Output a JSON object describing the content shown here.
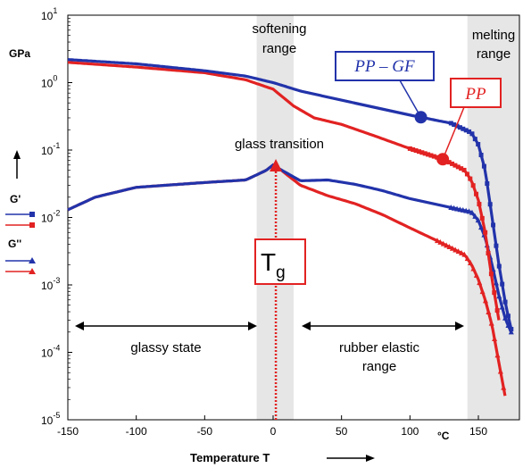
{
  "chart_data": {
    "type": "line",
    "xlabel": "Temperature   T",
    "x_unit": "°C",
    "y_unit": "GPa",
    "xlim": [
      -150,
      180
    ],
    "ylim_log10": [
      -5,
      1
    ],
    "yscale": "log",
    "x_ticks": [
      "-150",
      "-100",
      "-50",
      "0",
      "50",
      "100",
      "150"
    ],
    "y_ticks": [
      {
        "base": "10",
        "exp": "1"
      },
      {
        "base": "10",
        "exp": "0"
      },
      {
        "base": "10",
        "exp": "-1"
      },
      {
        "base": "10",
        "exp": "-2"
      },
      {
        "base": "10",
        "exp": "-3"
      },
      {
        "base": "10",
        "exp": "-4"
      },
      {
        "base": "10",
        "exp": "-5"
      }
    ],
    "grid": false,
    "legend": {
      "position": "left",
      "storage_label": "G'",
      "loss_label": "G''"
    },
    "series": [
      {
        "name": "PP – GF",
        "kind": "G'",
        "color": "#2233aa",
        "x": [
          -150,
          -100,
          -50,
          -20,
          0,
          20,
          50,
          100,
          130,
          145,
          150,
          155,
          160,
          165,
          170,
          175
        ],
        "y": [
          2.2,
          1.9,
          1.5,
          1.25,
          1.0,
          0.75,
          0.55,
          0.33,
          0.25,
          0.18,
          0.12,
          0.05,
          0.01,
          0.002,
          0.0005,
          0.00018
        ]
      },
      {
        "name": "PP",
        "kind": "G'",
        "color": "#e22222",
        "x": [
          -150,
          -100,
          -50,
          -20,
          0,
          15,
          30,
          50,
          75,
          100,
          125,
          140,
          145,
          150,
          155,
          160,
          165
        ],
        "y": [
          2.0,
          1.7,
          1.4,
          1.1,
          0.8,
          0.45,
          0.3,
          0.24,
          0.16,
          0.105,
          0.072,
          0.05,
          0.035,
          0.018,
          0.006,
          0.0012,
          0.0003
        ]
      },
      {
        "name": "PP – GF",
        "kind": "G''",
        "color": "#2233aa",
        "x": [
          -150,
          -130,
          -100,
          -50,
          -20,
          -5,
          0,
          5,
          20,
          40,
          60,
          80,
          100,
          130,
          145,
          150,
          155,
          160,
          165,
          170,
          175
        ],
        "y": [
          0.013,
          0.02,
          0.028,
          0.033,
          0.036,
          0.05,
          0.06,
          0.052,
          0.035,
          0.036,
          0.031,
          0.025,
          0.019,
          0.014,
          0.012,
          0.009,
          0.005,
          0.002,
          0.0007,
          0.0003,
          0.00018
        ]
      },
      {
        "name": "PP",
        "kind": "G''",
        "color": "#e22222",
        "x": [
          -150,
          -130,
          -100,
          -50,
          -20,
          -5,
          0,
          5,
          20,
          40,
          60,
          80,
          100,
          120,
          140,
          145,
          150,
          155,
          160,
          165,
          170
        ],
        "y": [
          0.013,
          0.02,
          0.028,
          0.033,
          0.036,
          0.05,
          0.06,
          0.052,
          0.03,
          0.021,
          0.016,
          0.011,
          0.007,
          0.0045,
          0.0028,
          0.002,
          0.0012,
          0.0006,
          0.00025,
          7e-05,
          2e-05
        ]
      }
    ],
    "regions": [
      {
        "label": "softening\nrange",
        "x_from": -12,
        "x_to": 15
      },
      {
        "label": "melting\nrange",
        "x_from": 142,
        "x_to": 182
      }
    ],
    "annotations": {
      "glass_transition": "glass transition",
      "tg_main": "T",
      "tg_sub": "g",
      "tg_x": 2,
      "glassy_state": "glassy state",
      "rubber_line1": "rubber elastic",
      "rubber_line2": "range",
      "softening_line1": "softening",
      "softening_line2": "range",
      "melting_line1": "melting",
      "melting_line2": "range",
      "pp_gf_label": "PP – GF",
      "pp_label": "PP"
    }
  }
}
